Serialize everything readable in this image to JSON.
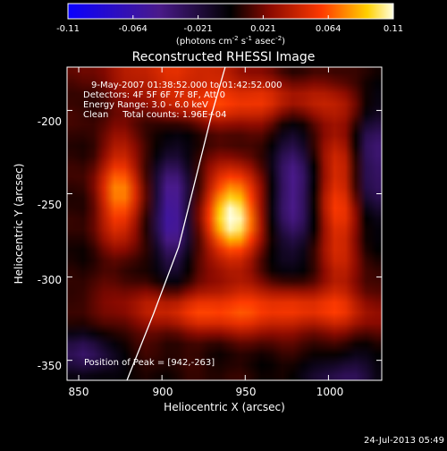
{
  "colorbar": {
    "ticks": [
      "-0.11",
      "-0.064",
      "-0.021",
      "0.021",
      "0.064",
      "0.11"
    ],
    "units_prefix": "(photons cm",
    "units_exp1": "-2",
    "units_mid": " s",
    "units_exp2": "-1",
    "units_mid2": " asec",
    "units_exp3": "-2",
    "units_suffix": ")",
    "range": [
      -0.11,
      0.11
    ]
  },
  "chart_data": {
    "type": "heatmap",
    "title": "Reconstructed RHESSI Image",
    "xlabel": "Heliocentric X (arcsec)",
    "ylabel": "Heliocentric Y (arcsec)",
    "xlim": [
      843,
      1032
    ],
    "ylim": [
      -362,
      -174
    ],
    "x_ticks": [
      850,
      900,
      950,
      1000
    ],
    "y_ticks": [
      -200,
      -250,
      -300,
      -350
    ],
    "annotations": [
      "9-May-2007 01:38:52.000 to 01:42:52.000",
      "Detectors: 4F 5F 6F 7F 8F, Att 0",
      "Energy Range: 3.0 - 6.0 keV",
      "Clean     Total counts: 1.96E+04"
    ],
    "peak_label": "Position of Peak = [942,-263]",
    "peak": [
      942,
      -263
    ],
    "colormap": "rhessi-blue-black-red-yellow-white",
    "features": [
      {
        "kind": "peak",
        "x": 942,
        "y": -263,
        "value": 0.11,
        "sx": 11,
        "sy": 20
      },
      {
        "kind": "ring-segment",
        "x": 875,
        "y": -250,
        "value": 0.07,
        "sx": 10,
        "sy": 22
      },
      {
        "kind": "ring-segment",
        "x": 1005,
        "y": -255,
        "value": 0.055,
        "sx": 10,
        "sy": 40
      },
      {
        "kind": "ring-segment",
        "x": 945,
        "y": -195,
        "value": 0.055,
        "sx": 40,
        "sy": 9
      },
      {
        "kind": "ring-segment",
        "x": 950,
        "y": -320,
        "value": 0.06,
        "sx": 55,
        "sy": 10
      },
      {
        "kind": "ring-segment",
        "x": 905,
        "y": -175,
        "value": 0.045,
        "sx": 30,
        "sy": 9
      },
      {
        "kind": "trough",
        "x": 905,
        "y": -260,
        "value": -0.07,
        "sx": 8,
        "sy": 25
      },
      {
        "kind": "trough",
        "x": 980,
        "y": -250,
        "value": -0.06,
        "sx": 9,
        "sy": 28
      },
      {
        "kind": "trough",
        "x": 1025,
        "y": -230,
        "value": -0.05,
        "sx": 8,
        "sy": 25
      },
      {
        "kind": "trough",
        "x": 855,
        "y": -345,
        "value": -0.04,
        "sx": 12,
        "sy": 10
      },
      {
        "kind": "trough",
        "x": 1010,
        "y": -360,
        "value": -0.04,
        "sx": 15,
        "sy": 10
      }
    ],
    "limb_curve": [
      [
        879,
        -362
      ],
      [
        895,
        -322
      ],
      [
        910,
        -282
      ],
      [
        920,
        -242
      ],
      [
        930,
        -202
      ],
      [
        938,
        -174
      ]
    ]
  },
  "timestamp": "24-Jul-2013 05:49"
}
